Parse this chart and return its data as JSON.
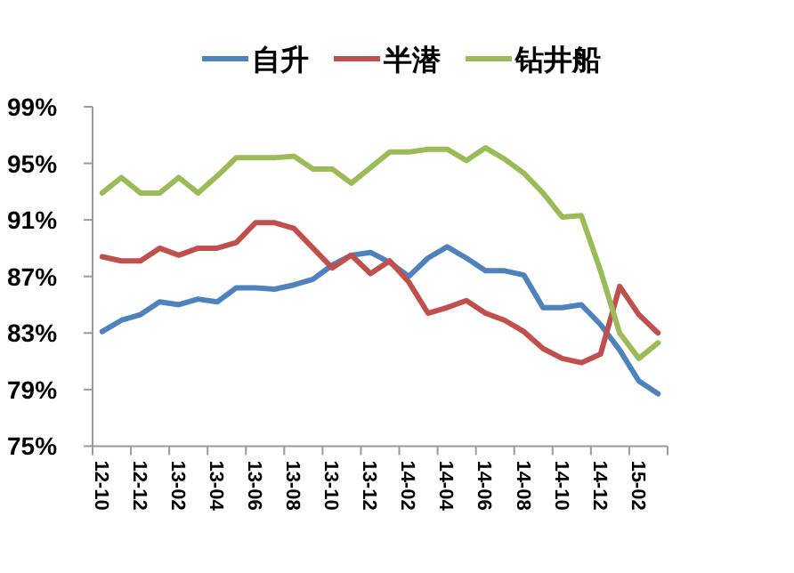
{
  "chart_data": {
    "type": "line",
    "categories": [
      "12-10",
      null,
      "12-12",
      null,
      "13-02",
      null,
      "13-04",
      null,
      "13-06",
      null,
      "13-08",
      null,
      "13-10",
      null,
      "13-12",
      null,
      "14-02",
      null,
      "14-04",
      null,
      "14-06",
      null,
      "14-08",
      null,
      "14-10",
      null,
      "14-12",
      null,
      "15-02",
      null
    ],
    "series": [
      {
        "name": "自升",
        "color": "#4f81bd",
        "values": [
          83.1,
          83.9,
          84.3,
          85.2,
          85.0,
          85.4,
          85.2,
          86.2,
          86.2,
          86.1,
          86.4,
          86.8,
          87.8,
          88.5,
          88.7,
          88.0,
          87.0,
          88.3,
          89.1,
          88.3,
          87.4,
          87.4,
          87.1,
          84.8,
          84.8,
          85.0,
          83.6,
          81.8,
          79.6,
          78.7
        ]
      },
      {
        "name": "半潜",
        "color": "#c0504d",
        "values": [
          88.4,
          88.1,
          88.1,
          89.0,
          88.5,
          89.0,
          89.0,
          89.4,
          90.8,
          90.8,
          90.4,
          89.0,
          87.6,
          88.5,
          87.2,
          88.1,
          86.6,
          84.4,
          84.8,
          85.3,
          84.4,
          83.9,
          83.1,
          81.9,
          81.2,
          80.9,
          81.5,
          86.3,
          84.3,
          83.0
        ]
      },
      {
        "name": "钻井船",
        "color": "#9bbb59",
        "values": [
          92.9,
          94.0,
          92.9,
          92.9,
          94.0,
          92.9,
          94.1,
          95.4,
          95.4,
          95.4,
          95.5,
          94.6,
          94.6,
          93.6,
          94.7,
          95.8,
          95.8,
          96.0,
          96.0,
          95.2,
          96.1,
          95.3,
          94.3,
          92.9,
          91.2,
          91.3,
          87.4,
          83.0,
          81.2,
          82.3
        ]
      }
    ],
    "ylim": [
      75,
      99
    ],
    "yticks": [
      {
        "value": 75,
        "label": "75%"
      },
      {
        "value": 79,
        "label": "79%"
      },
      {
        "value": 83,
        "label": "83%"
      },
      {
        "value": 87,
        "label": "87%"
      },
      {
        "value": 91,
        "label": "91%"
      },
      {
        "value": 95,
        "label": "95%"
      },
      {
        "value": 99,
        "label": "99%"
      }
    ],
    "legend": "top"
  }
}
